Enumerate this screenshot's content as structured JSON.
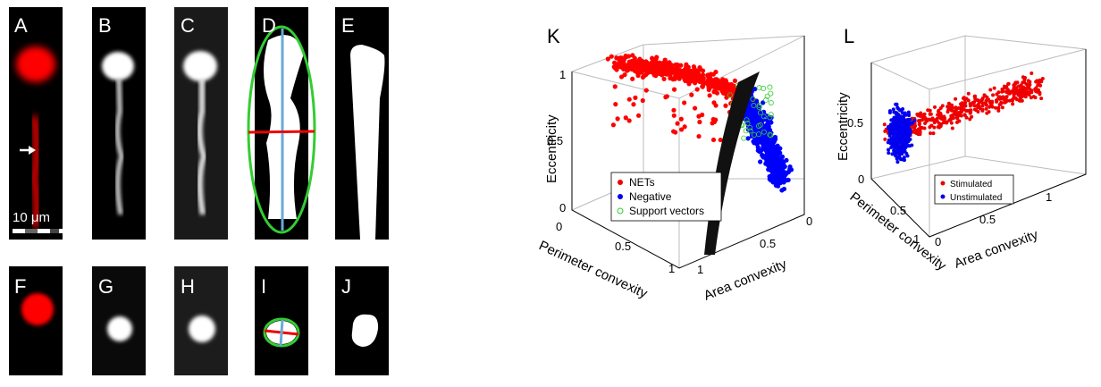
{
  "panel_labels": [
    "A",
    "B",
    "C",
    "D",
    "E",
    "F",
    "G",
    "H",
    "I",
    "J",
    "K",
    "L"
  ],
  "scale_bar": "10 μm",
  "plot_k": {
    "z_label": "Eccentricity",
    "x_label": "Perimeter convexity",
    "y_label": "Area convexity",
    "z_ticks": [
      "0",
      "0.5",
      "1"
    ],
    "x_ticks": [
      "0",
      "0.5",
      "1"
    ],
    "y_ticks": [
      "0",
      "0.5",
      "1"
    ],
    "legend": [
      "NETs",
      "Negative",
      "Support vectors"
    ]
  },
  "plot_l": {
    "z_label": "Eccentricity",
    "x_label": "Perimeter convexity",
    "y_label": "Area convexity",
    "z_ticks": [
      "0",
      "0.5"
    ],
    "x_ticks": [
      "0.5",
      "1"
    ],
    "y_ticks": [
      "0",
      "0.5",
      "1"
    ],
    "legend": [
      "Stimulated",
      "Unstimulated"
    ]
  }
}
